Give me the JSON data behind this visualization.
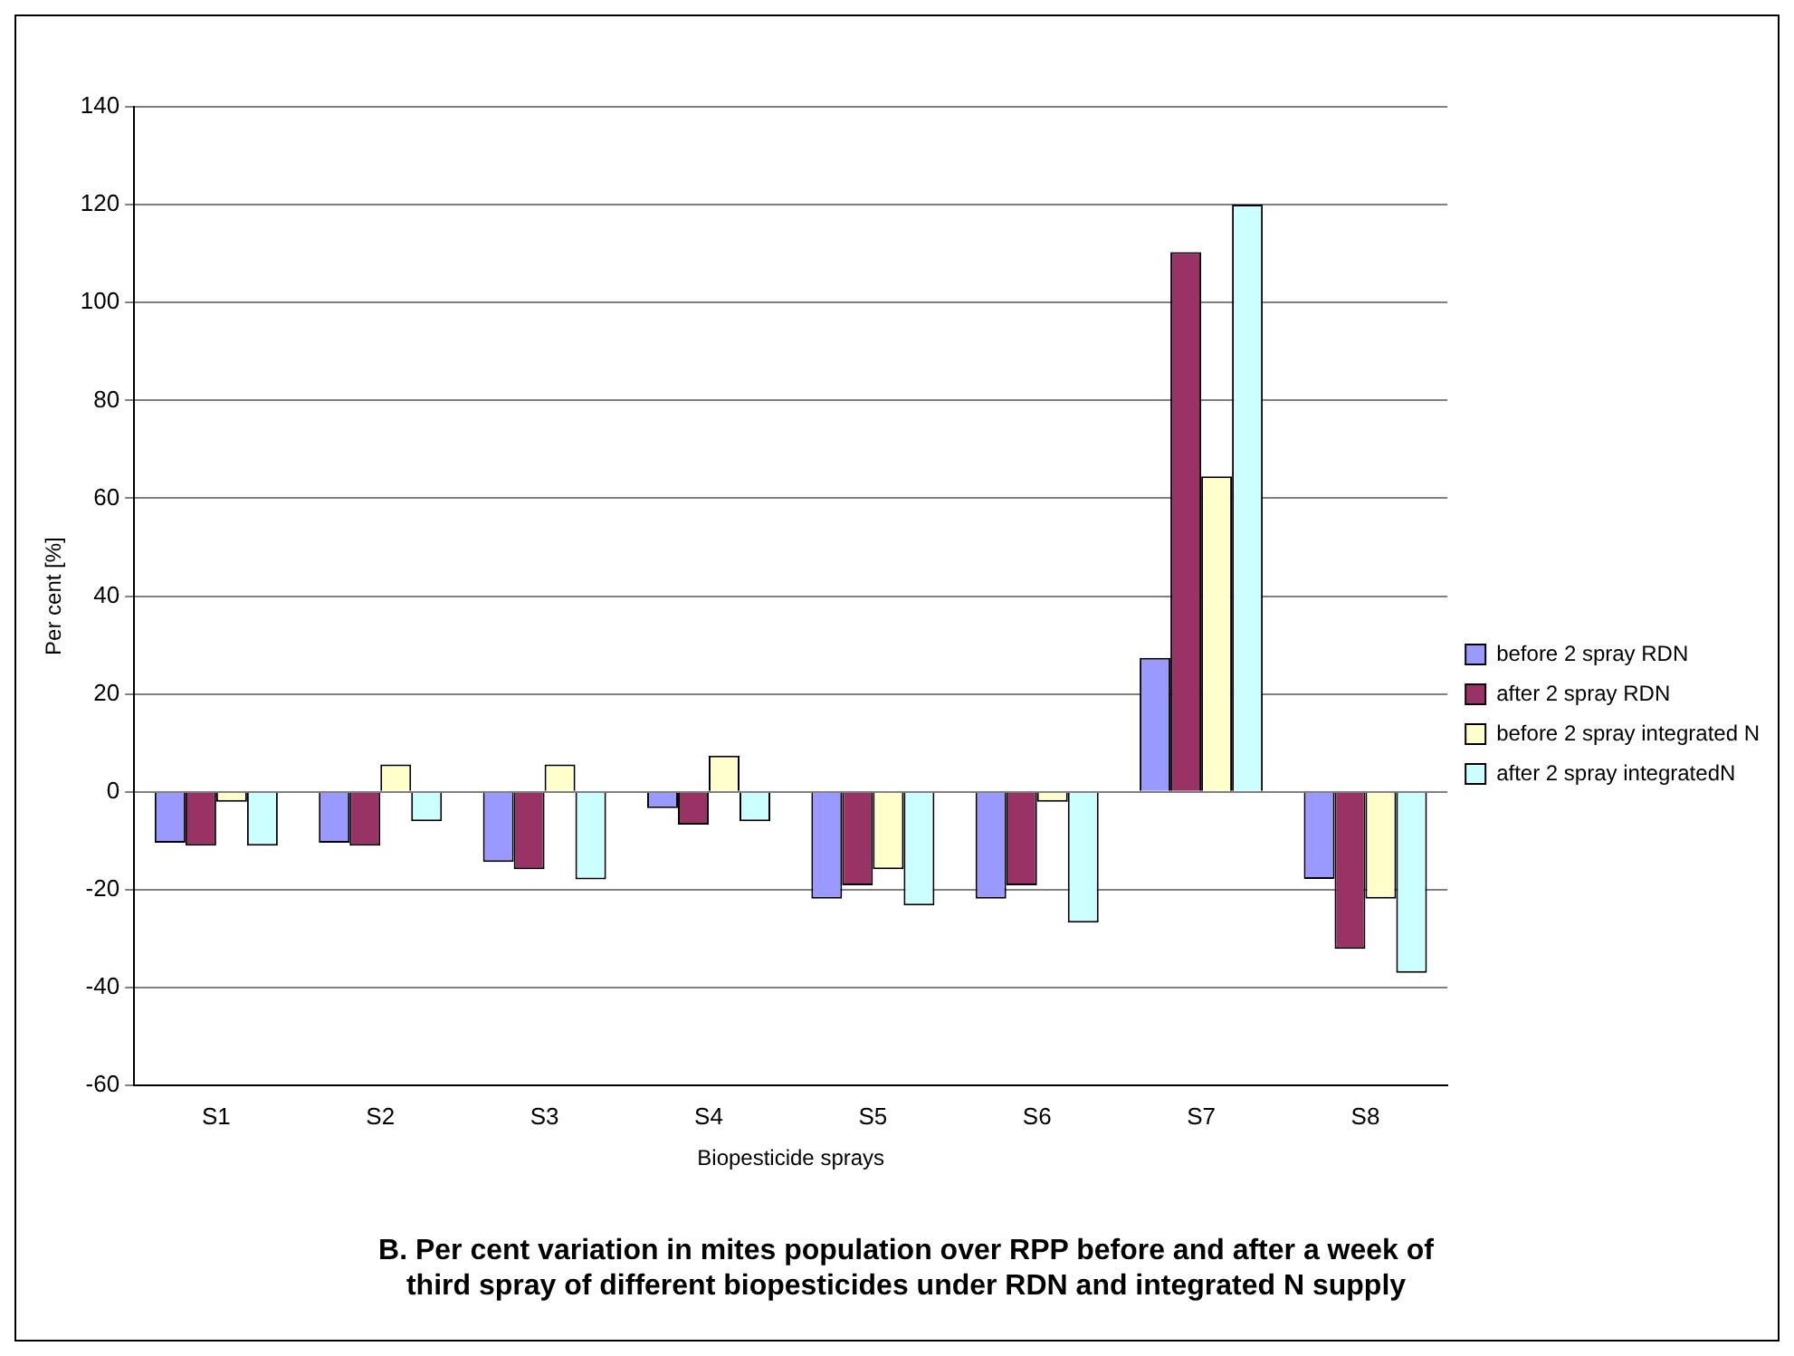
{
  "chart_data": {
    "type": "bar",
    "title": "B. Per cent variation in mites population over RPP before and after a week of third spray of different biopesticides under RDN and integrated N supply",
    "xlabel": "Biopesticide sprays",
    "ylabel": "Per cent [%]",
    "categories": [
      "S1",
      "S2",
      "S3",
      "S4",
      "S5",
      "S6",
      "S7",
      "S8"
    ],
    "series": [
      {
        "name": "before 2 spray RDN",
        "color": "#9999ff",
        "values": [
          -10.4,
          -10.4,
          -14.3,
          -3.3,
          -21.8,
          -21.8,
          27.4,
          -17.8
        ]
      },
      {
        "name": "after 2 spray RDN",
        "color": "#993366",
        "values": [
          -11,
          -11,
          -15.8,
          -6.7,
          -19.1,
          -19.1,
          110.3,
          -32.1
        ]
      },
      {
        "name": "before 2 spray integrated N",
        "color": "#ffffcc",
        "values": [
          -2,
          5.6,
          5.6,
          7.4,
          -15.8,
          -2,
          64.5,
          -21.8
        ]
      },
      {
        "name": "after 2 spray integratedN",
        "color": "#ccffff",
        "values": [
          -11,
          -6,
          -17.9,
          -6,
          -23.2,
          -26.7,
          120,
          -37
        ]
      }
    ],
    "ylim": [
      -60,
      140
    ],
    "yticks": [
      -60,
      -40,
      -20,
      0,
      20,
      40,
      60,
      80,
      100,
      120,
      140
    ],
    "grid": "y",
    "legend": "right"
  }
}
